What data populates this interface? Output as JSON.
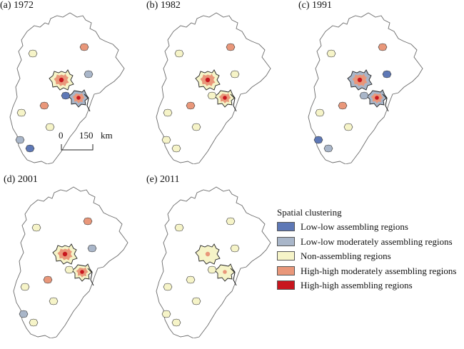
{
  "panels": [
    {
      "label": "(a) 1972",
      "hubs": {
        "beijing": [
          "#c8161e",
          "#e9977a",
          "#f6f4c8"
        ],
        "tianjin": [
          "#c8161e",
          "#e9977a",
          "#a9b6c9"
        ],
        "small": [
          "#f6f4c8",
          "#e9977a",
          "#a9b6c9",
          "#5e78b6"
        ]
      }
    },
    {
      "label": "(b) 1982",
      "hubs": {
        "beijing": [
          "#c8161e",
          "#e9977a",
          "#f6f4c8"
        ],
        "tianjin": [
          "#c8161e",
          "#e9977a",
          "#f6f4c8"
        ],
        "small": [
          "#f6f4c8",
          "#e9977a",
          "#f6f4c8",
          "#f6f4c8"
        ]
      }
    },
    {
      "label": "(c) 1991",
      "hubs": {
        "beijing": [
          "#c8161e",
          "#e9977a",
          "#a9b6c9"
        ],
        "tianjin": [
          "#c8161e",
          "#e9977a",
          "#a9b6c9"
        ],
        "small": [
          "#f6f4c8",
          "#e9977a",
          "#5e78b6",
          "#a9b6c9"
        ]
      }
    },
    {
      "label": "(d) 2001",
      "hubs": {
        "beijing": [
          "#c8161e",
          "#e9977a",
          "#f6f4c8"
        ],
        "tianjin": [
          "#c8161e",
          "#e9977a",
          "#f6f4c8"
        ],
        "small": [
          "#f6f4c8",
          "#e9977a",
          "#a9b6c9",
          "#f6f4c8"
        ]
      }
    },
    {
      "label": "(e) 2011",
      "hubs": {
        "beijing": [
          "#e9977a",
          "#f6f4c8",
          "#f6f4c8"
        ],
        "tianjin": [
          "#e9977a",
          "#f6f4c8",
          "#f6f4c8"
        ],
        "small": [
          "#f6f4c8",
          "#f6f4c8",
          "#f6f4c8",
          "#f6f4c8"
        ]
      }
    }
  ],
  "scale_bar": {
    "start": "0",
    "end": "150",
    "unit": "km"
  },
  "legend": {
    "title": "Spatial clustering",
    "items": [
      {
        "label": "Low-low assembling regions",
        "color": "#5e78b6"
      },
      {
        "label": "Low-low moderately assembling regions",
        "color": "#a9b6c9"
      },
      {
        "label": "Non-assembling regions",
        "color": "#f6f4c8"
      },
      {
        "label": "High-high moderately assembling regions",
        "color": "#e9977a"
      },
      {
        "label": "High-high assembling regions",
        "color": "#c8161e"
      }
    ]
  }
}
